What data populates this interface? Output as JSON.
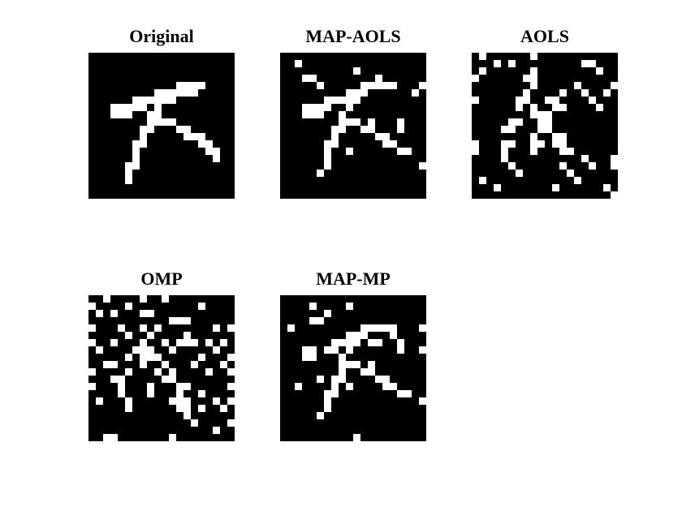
{
  "panels": [
    {
      "title": "Original"
    },
    {
      "title": "MAP-AOLS"
    },
    {
      "title": "AOLS"
    },
    {
      "title": "OMP"
    },
    {
      "title": "MAP-MP"
    }
  ],
  "colors": {
    "background": "#000000",
    "pixel": "#ffffff"
  }
}
